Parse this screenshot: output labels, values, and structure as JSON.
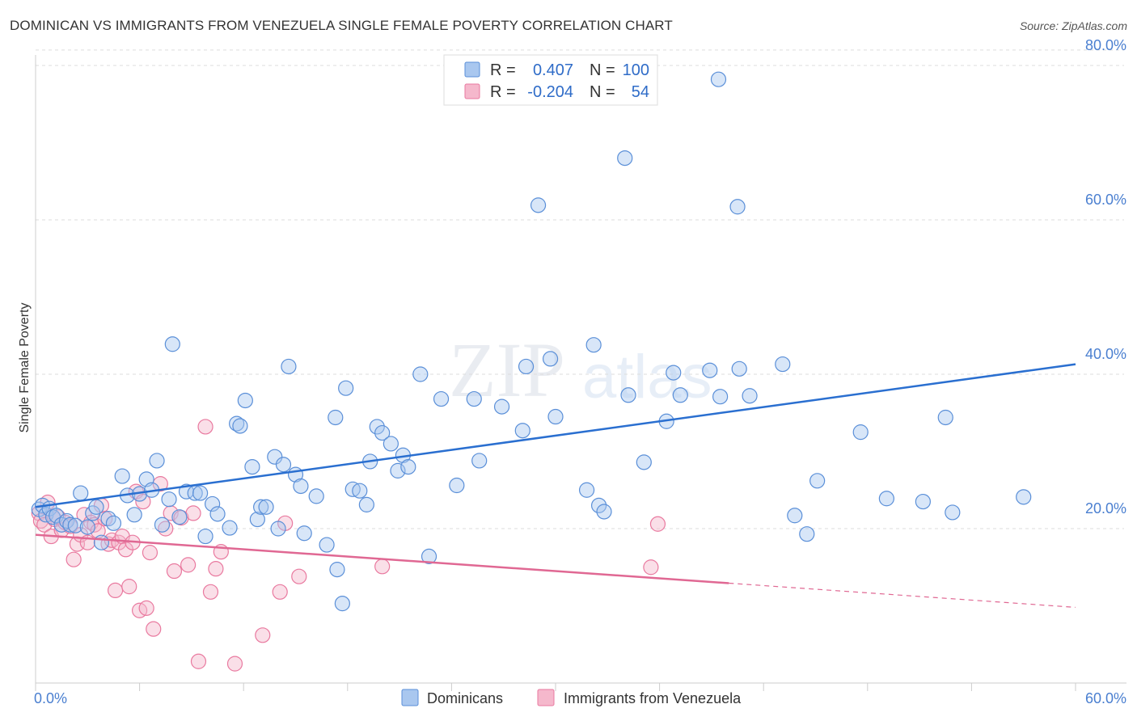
{
  "title": "DOMINICAN VS IMMIGRANTS FROM VENEZUELA SINGLE FEMALE POVERTY CORRELATION CHART",
  "source": "Source: ZipAtlas.com",
  "watermark": {
    "zip": "ZIP",
    "atlas": "atlas"
  },
  "colors": {
    "blue_fill": "#a9c7ef",
    "blue_stroke": "#5a8fd8",
    "blue_line": "#2a6fd0",
    "pink_fill": "#f5b8cc",
    "pink_stroke": "#e9799f",
    "pink_line": "#e06893",
    "tick_text": "#4a7fd0",
    "grid": "#dddddd"
  },
  "legend": {
    "rows": [
      {
        "r_label": "R =",
        "r_value": "0.407",
        "n_label": "N =",
        "n_value": "100"
      },
      {
        "r_label": "R =",
        "r_value": "-0.204",
        "n_label": "N =",
        "n_value": "54"
      }
    ]
  },
  "chart_data": {
    "type": "scatter",
    "title": "DOMINICAN VS IMMIGRANTS FROM VENEZUELA SINGLE FEMALE POVERTY CORRELATION CHART",
    "xlabel": "",
    "ylabel": "Single Female Poverty",
    "xlim": [
      0,
      60
    ],
    "ylim": [
      0,
      82
    ],
    "x_tick_labels": [
      "0.0%",
      "60.0%"
    ],
    "y_ticks": [
      20,
      40,
      60,
      80
    ],
    "y_tick_labels": [
      "20.0%",
      "40.0%",
      "60.0%",
      "80.0%"
    ],
    "grid": true,
    "series": [
      {
        "name": "Dominicans",
        "color": "#a9c7ef",
        "r": 0.407,
        "n": 100,
        "trend": {
          "x0": 0,
          "y0": 22.8,
          "x1": 60,
          "y1": 41.3,
          "dashed_from": null
        },
        "points": [
          [
            0.2,
            22.5
          ],
          [
            0.4,
            23.0
          ],
          [
            0.6,
            21.8
          ],
          [
            0.8,
            22.6
          ],
          [
            1.0,
            21.5
          ],
          [
            1.2,
            21.7
          ],
          [
            1.5,
            20.5
          ],
          [
            1.8,
            21.0
          ],
          [
            2.0,
            20.5
          ],
          [
            2.3,
            20.4
          ],
          [
            2.6,
            24.6
          ],
          [
            3.0,
            20.2
          ],
          [
            3.3,
            22.0
          ],
          [
            3.5,
            22.8
          ],
          [
            3.8,
            18.2
          ],
          [
            4.2,
            21.3
          ],
          [
            4.5,
            20.7
          ],
          [
            5.0,
            26.8
          ],
          [
            5.3,
            24.3
          ],
          [
            5.7,
            21.8
          ],
          [
            6.0,
            24.5
          ],
          [
            6.4,
            26.4
          ],
          [
            6.7,
            25.0
          ],
          [
            7.0,
            28.8
          ],
          [
            7.3,
            20.5
          ],
          [
            7.7,
            23.8
          ],
          [
            7.9,
            43.9
          ],
          [
            8.3,
            21.5
          ],
          [
            8.7,
            24.8
          ],
          [
            9.2,
            24.6
          ],
          [
            9.5,
            24.6
          ],
          [
            9.8,
            19.0
          ],
          [
            10.2,
            23.2
          ],
          [
            10.5,
            21.9
          ],
          [
            11.2,
            20.1
          ],
          [
            11.6,
            33.6
          ],
          [
            11.8,
            33.3
          ],
          [
            12.1,
            36.6
          ],
          [
            12.5,
            28.0
          ],
          [
            12.8,
            21.2
          ],
          [
            13.0,
            22.8
          ],
          [
            13.3,
            22.8
          ],
          [
            13.8,
            29.3
          ],
          [
            14.0,
            20.0
          ],
          [
            14.3,
            28.3
          ],
          [
            14.6,
            41.0
          ],
          [
            15.0,
            27.0
          ],
          [
            15.3,
            25.5
          ],
          [
            15.5,
            19.4
          ],
          [
            16.2,
            24.2
          ],
          [
            16.8,
            17.9
          ],
          [
            17.3,
            34.4
          ],
          [
            17.4,
            14.7
          ],
          [
            17.7,
            10.3
          ],
          [
            17.9,
            38.2
          ],
          [
            18.3,
            25.1
          ],
          [
            18.7,
            24.9
          ],
          [
            19.1,
            23.1
          ],
          [
            19.3,
            28.7
          ],
          [
            19.7,
            33.2
          ],
          [
            20.0,
            32.4
          ],
          [
            20.5,
            31.0
          ],
          [
            20.9,
            27.5
          ],
          [
            21.2,
            29.5
          ],
          [
            21.5,
            28.0
          ],
          [
            22.2,
            40.0
          ],
          [
            22.7,
            16.4
          ],
          [
            23.4,
            36.8
          ],
          [
            24.3,
            25.6
          ],
          [
            25.3,
            36.8
          ],
          [
            25.6,
            28.8
          ],
          [
            26.9,
            35.8
          ],
          [
            28.1,
            32.7
          ],
          [
            28.3,
            41.0
          ],
          [
            29.0,
            61.9
          ],
          [
            29.7,
            42.0
          ],
          [
            30.0,
            34.5
          ],
          [
            31.8,
            25.0
          ],
          [
            32.5,
            23.0
          ],
          [
            32.8,
            22.2
          ],
          [
            34.0,
            68.0
          ],
          [
            34.2,
            37.3
          ],
          [
            35.1,
            28.6
          ],
          [
            36.4,
            33.9
          ],
          [
            36.8,
            40.2
          ],
          [
            37.2,
            37.3
          ],
          [
            38.9,
            40.5
          ],
          [
            39.4,
            78.2
          ],
          [
            39.5,
            37.1
          ],
          [
            40.5,
            61.7
          ],
          [
            40.6,
            40.7
          ],
          [
            41.2,
            37.2
          ],
          [
            43.1,
            41.3
          ],
          [
            43.8,
            21.7
          ],
          [
            44.5,
            19.3
          ],
          [
            45.1,
            26.2
          ],
          [
            47.6,
            32.5
          ],
          [
            49.1,
            23.9
          ],
          [
            51.2,
            23.5
          ],
          [
            52.5,
            34.4
          ],
          [
            52.9,
            22.1
          ],
          [
            57.0,
            24.1
          ],
          [
            32.2,
            43.8
          ]
        ]
      },
      {
        "name": "Immigrants from Venezuela",
        "color": "#f5b8cc",
        "r": -0.204,
        "n": 54,
        "trend": {
          "x0": 0,
          "y0": 19.2,
          "x1": 60,
          "y1": 9.8,
          "dashed_from": 40
        },
        "points": [
          [
            0.2,
            22.0
          ],
          [
            0.3,
            21.0
          ],
          [
            0.5,
            20.5
          ],
          [
            0.7,
            23.4
          ],
          [
            0.9,
            19.0
          ],
          [
            1.1,
            21.2
          ],
          [
            1.3,
            21.5
          ],
          [
            1.5,
            19.8
          ],
          [
            1.7,
            20.8
          ],
          [
            2.0,
            20.3
          ],
          [
            2.2,
            16.0
          ],
          [
            2.4,
            18.0
          ],
          [
            2.6,
            19.2
          ],
          [
            2.8,
            21.8
          ],
          [
            3.0,
            18.2
          ],
          [
            3.2,
            20.8
          ],
          [
            3.4,
            20.5
          ],
          [
            3.6,
            19.7
          ],
          [
            3.8,
            23.0
          ],
          [
            4.0,
            21.3
          ],
          [
            4.2,
            18.0
          ],
          [
            4.4,
            18.5
          ],
          [
            4.6,
            12.0
          ],
          [
            4.8,
            18.2
          ],
          [
            5.0,
            19.0
          ],
          [
            5.2,
            17.3
          ],
          [
            5.4,
            12.5
          ],
          [
            5.6,
            18.2
          ],
          [
            5.8,
            24.8
          ],
          [
            6.0,
            9.4
          ],
          [
            6.2,
            23.5
          ],
          [
            6.4,
            9.7
          ],
          [
            6.6,
            16.9
          ],
          [
            6.8,
            7.0
          ],
          [
            7.2,
            25.8
          ],
          [
            7.5,
            20.0
          ],
          [
            7.8,
            22.0
          ],
          [
            8.0,
            14.5
          ],
          [
            8.4,
            21.4
          ],
          [
            8.8,
            15.3
          ],
          [
            9.1,
            22.0
          ],
          [
            9.4,
            2.8
          ],
          [
            9.8,
            33.2
          ],
          [
            10.1,
            11.8
          ],
          [
            10.4,
            14.8
          ],
          [
            10.7,
            17.0
          ],
          [
            11.5,
            2.5
          ],
          [
            13.1,
            6.2
          ],
          [
            14.1,
            11.8
          ],
          [
            14.4,
            20.7
          ],
          [
            15.2,
            13.8
          ],
          [
            20.0,
            15.1
          ],
          [
            35.5,
            15.0
          ],
          [
            35.9,
            20.6
          ]
        ]
      }
    ]
  },
  "bottom_legend": [
    {
      "label": "Dominicans",
      "color": "#a9c7ef"
    },
    {
      "label": "Immigrants from Venezuela",
      "color": "#f5b8cc"
    }
  ]
}
